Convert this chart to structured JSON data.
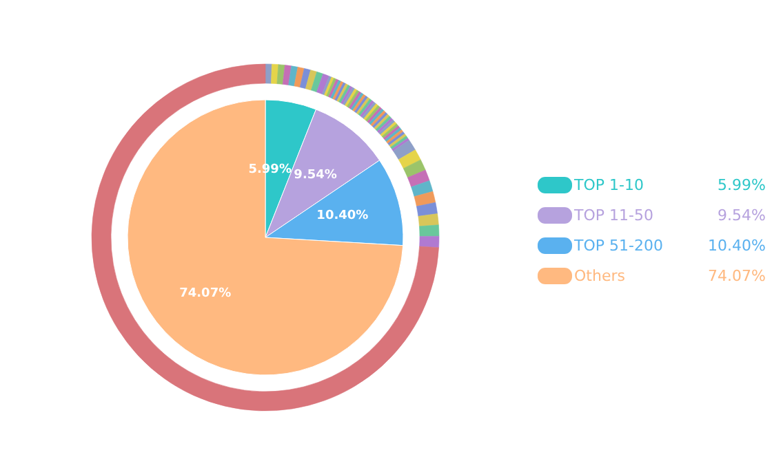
{
  "chart_data": {
    "type": "pie",
    "categories": [
      "TOP 1-10",
      "TOP 11-50",
      "TOP 51-200",
      "Others"
    ],
    "legend": "right",
    "series": [
      {
        "values": [
          5.99,
          9.54,
          10.4,
          74.07
        ],
        "colors": [
          "#2ec7c9",
          "#b6a2de",
          "#5ab1ef",
          "#ffb980"
        ],
        "value_labels": [
          "5.99%",
          "9.54%",
          "10.40%",
          "74.07%"
        ]
      },
      {
        "type": "donut",
        "x": [
          null,
          null,
          null,
          null,
          null,
          null,
          null,
          null,
          null,
          null,
          null,
          null,
          null,
          null,
          null,
          null,
          null,
          null,
          null,
          null,
          null,
          null,
          null,
          null,
          null,
          null,
          null,
          null,
          null,
          null,
          null,
          null,
          null,
          null,
          null,
          null,
          null,
          null,
          null,
          null,
          null,
          null,
          null,
          null,
          null,
          null,
          null,
          null,
          null,
          null,
          null,
          null,
          null,
          null,
          null,
          null,
          null,
          null,
          null,
          null,
          null
        ],
        "values": [
          0.599,
          0.599,
          0.599,
          0.599,
          0.599,
          0.599,
          0.599,
          0.599,
          0.599,
          0.599,
          0.2385,
          0.2385,
          0.2385,
          0.2385,
          0.2385,
          0.2385,
          0.2385,
          0.2385,
          0.2385,
          0.2385,
          0.2385,
          0.2385,
          0.2385,
          0.2385,
          0.2385,
          0.2385,
          0.2385,
          0.2385,
          0.2385,
          0.2385,
          0.2385,
          0.2385,
          0.2385,
          0.2385,
          0.2385,
          0.2385,
          0.2385,
          0.2385,
          0.2385,
          0.2385,
          0.2385,
          0.2385,
          0.2385,
          0.2385,
          0.2385,
          0.2385,
          0.2385,
          0.2385,
          0.2385,
          0.2385,
          1.04,
          1.04,
          1.04,
          1.04,
          1.04,
          1.04,
          1.04,
          1.04,
          1.04,
          1.04,
          74.07
        ],
        "colors": [
          "#8e9fc8",
          "#e5d44a",
          "#9bc46a",
          "#c56fb6",
          "#5fb5c9",
          "#f09a5a",
          "#7b8fd8",
          "#d8c65a",
          "#69c79c",
          "#b07ad1",
          "#8e9fc8",
          "#e5d44a",
          "#9bc46a",
          "#c56fb6",
          "#5fb5c9",
          "#f09a5a",
          "#7b8fd8",
          "#d8c65a",
          "#69c79c",
          "#b07ad1",
          "#8e9fc8",
          "#e5d44a",
          "#9bc46a",
          "#c56fb6",
          "#5fb5c9",
          "#f09a5a",
          "#7b8fd8",
          "#d8c65a",
          "#69c79c",
          "#b07ad1",
          "#8e9fc8",
          "#e5d44a",
          "#9bc46a",
          "#c56fb6",
          "#5fb5c9",
          "#f09a5a",
          "#7b8fd8",
          "#d8c65a",
          "#69c79c",
          "#b07ad1",
          "#8e9fc8",
          "#e5d44a",
          "#9bc46a",
          "#c56fb6",
          "#5fb5c9",
          "#f09a5a",
          "#7b8fd8",
          "#d8c65a",
          "#69c79c",
          "#b07ad1",
          "#8e9fc8",
          "#e5d44a",
          "#9bc46a",
          "#c56fb6",
          "#5fb5c9",
          "#f09a5a",
          "#7b8fd8",
          "#d8c65a",
          "#69c79c",
          "#b07ad1",
          "#d9747a"
        ]
      }
    ]
  }
}
